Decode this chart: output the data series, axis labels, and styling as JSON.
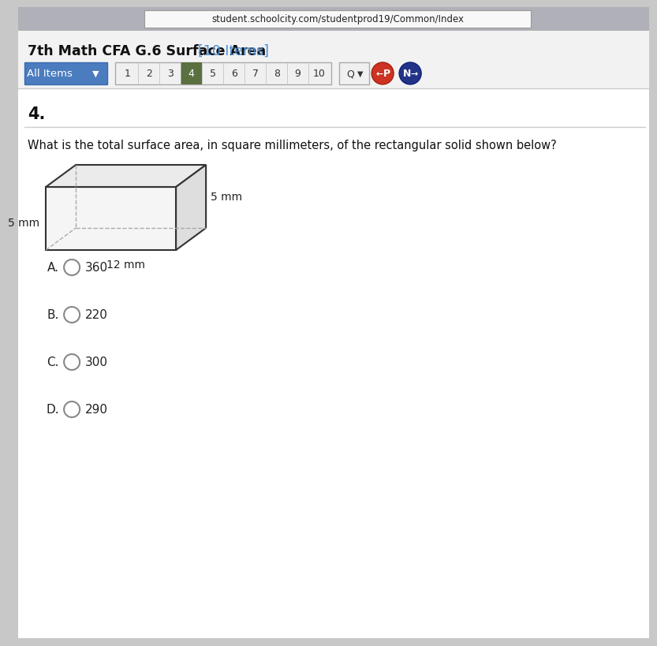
{
  "bg_color": "#c8c8c8",
  "content_bg": "#ffffff",
  "url_bar_bg": "#d8d8d8",
  "url_text": "student.schoolcity.com/studentprod19/Common/Index",
  "title_text": "7th Math CFA G.6 Surface Area ",
  "title_bracket": "[10 Items]",
  "title_bracket_color": "#4a90d9",
  "nav_allitems_bg": "#4a7cbf",
  "nav_allitems_text": "All Items",
  "nav_numbers": [
    "1",
    "2",
    "3",
    "4",
    "5",
    "6",
    "7",
    "8",
    "9",
    "10"
  ],
  "nav_active_idx": 3,
  "nav_active_bg": "#5a7040",
  "nav_box_bg": "#f0f0f0",
  "nav_box_edge": "#aaaaaa",
  "q_btn_bg": "#f0f0f0",
  "p_btn_bg": "#cc3322",
  "n_btn_bg": "#223388",
  "question_number": "4.",
  "question_text": "What is the total surface area, in square millimeters, of the rectangular solid shown below?",
  "dim_width": "12 mm",
  "dim_height_right": "5 mm",
  "dim_depth_left": "5 mm",
  "choices": [
    "A.",
    "B.",
    "C.",
    "D."
  ],
  "choice_values": [
    "360",
    "220",
    "300",
    "290"
  ]
}
